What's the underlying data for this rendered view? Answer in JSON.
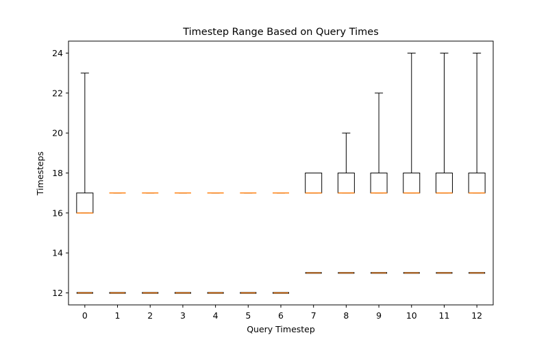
{
  "chart_data": {
    "type": "box",
    "title": "Timestep Range Based on Query Times",
    "xlabel": "Query Timestep",
    "ylabel": "Timesteps",
    "categories": [
      "0",
      "1",
      "2",
      "3",
      "4",
      "5",
      "6",
      "7",
      "8",
      "9",
      "10",
      "11",
      "12"
    ],
    "yticks": [
      "12",
      "14",
      "16",
      "18",
      "20",
      "22",
      "24"
    ],
    "ylim": [
      11.4,
      24.6
    ],
    "grid": false,
    "colors": {
      "box": "#000000",
      "median": "#ff7f0e",
      "background": "#ffffff"
    },
    "boxes": [
      {
        "x": "0",
        "whislo": 16,
        "q1": 16,
        "med": 16,
        "q3": 17,
        "whishi": 23,
        "fliers": [
          12
        ]
      },
      {
        "x": "1",
        "whislo": 17,
        "q1": 17,
        "med": 17,
        "q3": 17,
        "whishi": 17,
        "fliers": [
          12
        ]
      },
      {
        "x": "2",
        "whislo": 17,
        "q1": 17,
        "med": 17,
        "q3": 17,
        "whishi": 17,
        "fliers": [
          12
        ]
      },
      {
        "x": "3",
        "whislo": 17,
        "q1": 17,
        "med": 17,
        "q3": 17,
        "whishi": 17,
        "fliers": [
          12
        ]
      },
      {
        "x": "4",
        "whislo": 17,
        "q1": 17,
        "med": 17,
        "q3": 17,
        "whishi": 17,
        "fliers": [
          12
        ]
      },
      {
        "x": "5",
        "whislo": 17,
        "q1": 17,
        "med": 17,
        "q3": 17,
        "whishi": 17,
        "fliers": [
          12
        ]
      },
      {
        "x": "6",
        "whislo": 17,
        "q1": 17,
        "med": 17,
        "q3": 17,
        "whishi": 17,
        "fliers": [
          12
        ]
      },
      {
        "x": "7",
        "whislo": 17,
        "q1": 17,
        "med": 17,
        "q3": 18,
        "whishi": 18,
        "fliers": [
          13
        ]
      },
      {
        "x": "8",
        "whislo": 17,
        "q1": 17,
        "med": 17,
        "q3": 18,
        "whishi": 20,
        "fliers": [
          13
        ]
      },
      {
        "x": "9",
        "whislo": 17,
        "q1": 17,
        "med": 17,
        "q3": 18,
        "whishi": 22,
        "fliers": [
          13
        ]
      },
      {
        "x": "10",
        "whislo": 17,
        "q1": 17,
        "med": 17,
        "q3": 18,
        "whishi": 24,
        "fliers": [
          13
        ]
      },
      {
        "x": "11",
        "whislo": 17,
        "q1": 17,
        "med": 17,
        "q3": 18,
        "whishi": 24,
        "fliers": [
          13
        ]
      },
      {
        "x": "12",
        "whislo": 17,
        "q1": 17,
        "med": 17,
        "q3": 18,
        "whishi": 24,
        "fliers": [
          13
        ]
      }
    ]
  }
}
